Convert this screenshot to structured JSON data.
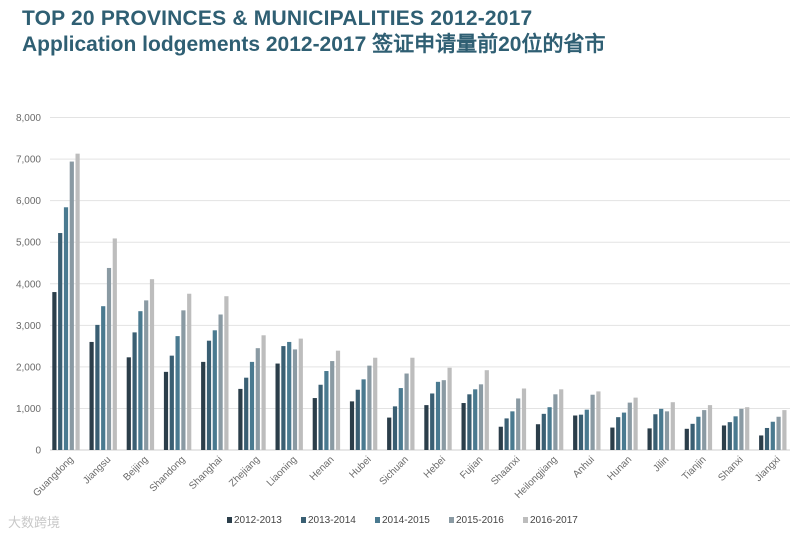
{
  "title": {
    "line1": "TOP 20 PROVINCES & MUNICIPALITIES 2012-2017",
    "line2": "Application lodgements 2012-2017 签证申请量前20位的省市"
  },
  "watermark": "大数跨境",
  "colors": {
    "series": [
      "#2b3e4a",
      "#3a5f73",
      "#4a7a90",
      "#8a9aa3",
      "#bdbdbd"
    ],
    "title": "#2f5f73",
    "axis_text": "#6b6b6b",
    "gridline": "#e3e3e3"
  },
  "chart_data": {
    "type": "bar",
    "ylim": [
      0,
      8000
    ],
    "yticks": [
      "0",
      "1,000",
      "2,000",
      "3,000",
      "4,000",
      "5,000",
      "6,000",
      "7,000",
      "8,000"
    ],
    "grid": true,
    "legend_position": "bottom",
    "categories": [
      "Guangdong",
      "Jiangsu",
      "Beijing",
      "Shandong",
      "Shanghai",
      "Zhejiang",
      "Liaoning",
      "Henan",
      "Hubei",
      "Sichuan",
      "Hebei",
      "Fujian",
      "Shaanxi",
      "Heilongjiang",
      "Anhui",
      "Hunan",
      "Jilin",
      "Tianjin",
      "Shanxi",
      "Jiangxi"
    ],
    "series": [
      {
        "name": "2012-2013",
        "values": [
          3800,
          2600,
          2230,
          1880,
          2120,
          1470,
          2080,
          1250,
          1170,
          780,
          1080,
          1130,
          560,
          620,
          830,
          540,
          520,
          510,
          590,
          350
        ]
      },
      {
        "name": "2013-2014",
        "values": [
          5220,
          3010,
          2830,
          2270,
          2630,
          1740,
          2500,
          1570,
          1450,
          1050,
          1360,
          1340,
          760,
          870,
          850,
          790,
          860,
          630,
          670,
          530
        ]
      },
      {
        "name": "2014-2015",
        "values": [
          5840,
          3460,
          3340,
          2740,
          2880,
          2120,
          2600,
          1900,
          1700,
          1490,
          1640,
          1460,
          930,
          1030,
          970,
          900,
          990,
          800,
          810,
          680
        ]
      },
      {
        "name": "2015-2016",
        "values": [
          6940,
          4380,
          3600,
          3360,
          3260,
          2450,
          2420,
          2140,
          2030,
          1840,
          1680,
          1580,
          1240,
          1340,
          1330,
          1140,
          930,
          960,
          990,
          800
        ]
      },
      {
        "name": "2016-2017",
        "values": [
          7130,
          5090,
          4110,
          3760,
          3700,
          2760,
          2680,
          2390,
          2220,
          2220,
          1980,
          1920,
          1480,
          1460,
          1410,
          1260,
          1150,
          1080,
          1030,
          960
        ]
      }
    ]
  }
}
